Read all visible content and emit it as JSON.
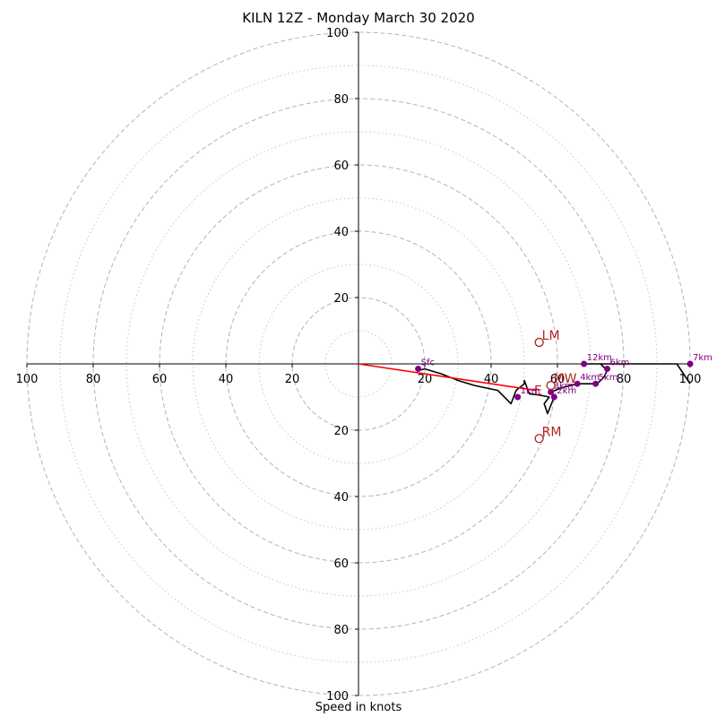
{
  "chart_data": {
    "type": "hodograph",
    "title": "KILN 12Z - Monday March 30 2020",
    "xlabel": "Speed in knots",
    "range": 100,
    "major_rings": [
      20,
      40,
      60,
      80,
      100
    ],
    "minor_rings": [
      10,
      30,
      50,
      70,
      90
    ],
    "tick_labels": [
      "20",
      "40",
      "60",
      "80",
      "100"
    ],
    "hodograph_trace": {
      "color": "#000000",
      "points": [
        [
          18,
          2
        ],
        [
          20,
          1.5
        ],
        [
          25,
          3
        ],
        [
          30,
          5
        ],
        [
          35,
          6.5
        ],
        [
          42,
          8
        ],
        [
          46,
          12
        ],
        [
          47.5,
          8
        ],
        [
          50,
          6
        ],
        [
          50,
          5
        ],
        [
          51.5,
          9
        ],
        [
          55,
          9.5
        ],
        [
          57.5,
          10
        ],
        [
          56,
          12
        ],
        [
          57,
          15
        ],
        [
          59,
          10
        ],
        [
          58,
          8.5
        ],
        [
          62,
          7
        ],
        [
          66,
          6
        ],
        [
          72,
          6
        ],
        [
          74,
          4
        ],
        [
          75,
          2
        ],
        [
          73,
          0
        ],
        [
          68,
          0
        ],
        [
          85,
          0
        ],
        [
          96,
          0
        ],
        [
          98,
          3
        ],
        [
          100,
          6
        ]
      ]
    },
    "height_markers": {
      "color": "#800080",
      "points": [
        {
          "label": "Sfc",
          "u": 18,
          "v": 1.5
        },
        {
          "label": "1km",
          "u": 48,
          "v": 10
        },
        {
          "label": "2km",
          "u": 59,
          "v": 10
        },
        {
          "label": "3km",
          "u": 58,
          "v": 8.5
        },
        {
          "label": "4km",
          "u": 66,
          "v": 6
        },
        {
          "label": "5km",
          "u": 71.5,
          "v": 6
        },
        {
          "label": "6km",
          "u": 75,
          "v": 1.5
        },
        {
          "label": "7km",
          "u": 100,
          "v": 0
        },
        {
          "label": "12km",
          "u": 68,
          "v": 0
        }
      ]
    },
    "storm_motion": {
      "color": "#b22222",
      "points": [
        {
          "label": "LM",
          "u": 54.5,
          "v": -6.5
        },
        {
          "label": "MW",
          "u": 58,
          "v": 6.5
        },
        {
          "label": "RM",
          "u": 54.5,
          "v": 22.5
        }
      ]
    },
    "shear_vector": {
      "color": "#ff0000",
      "from": [
        0,
        0
      ],
      "to": [
        53.5,
        8
      ],
      "label": "E"
    }
  }
}
